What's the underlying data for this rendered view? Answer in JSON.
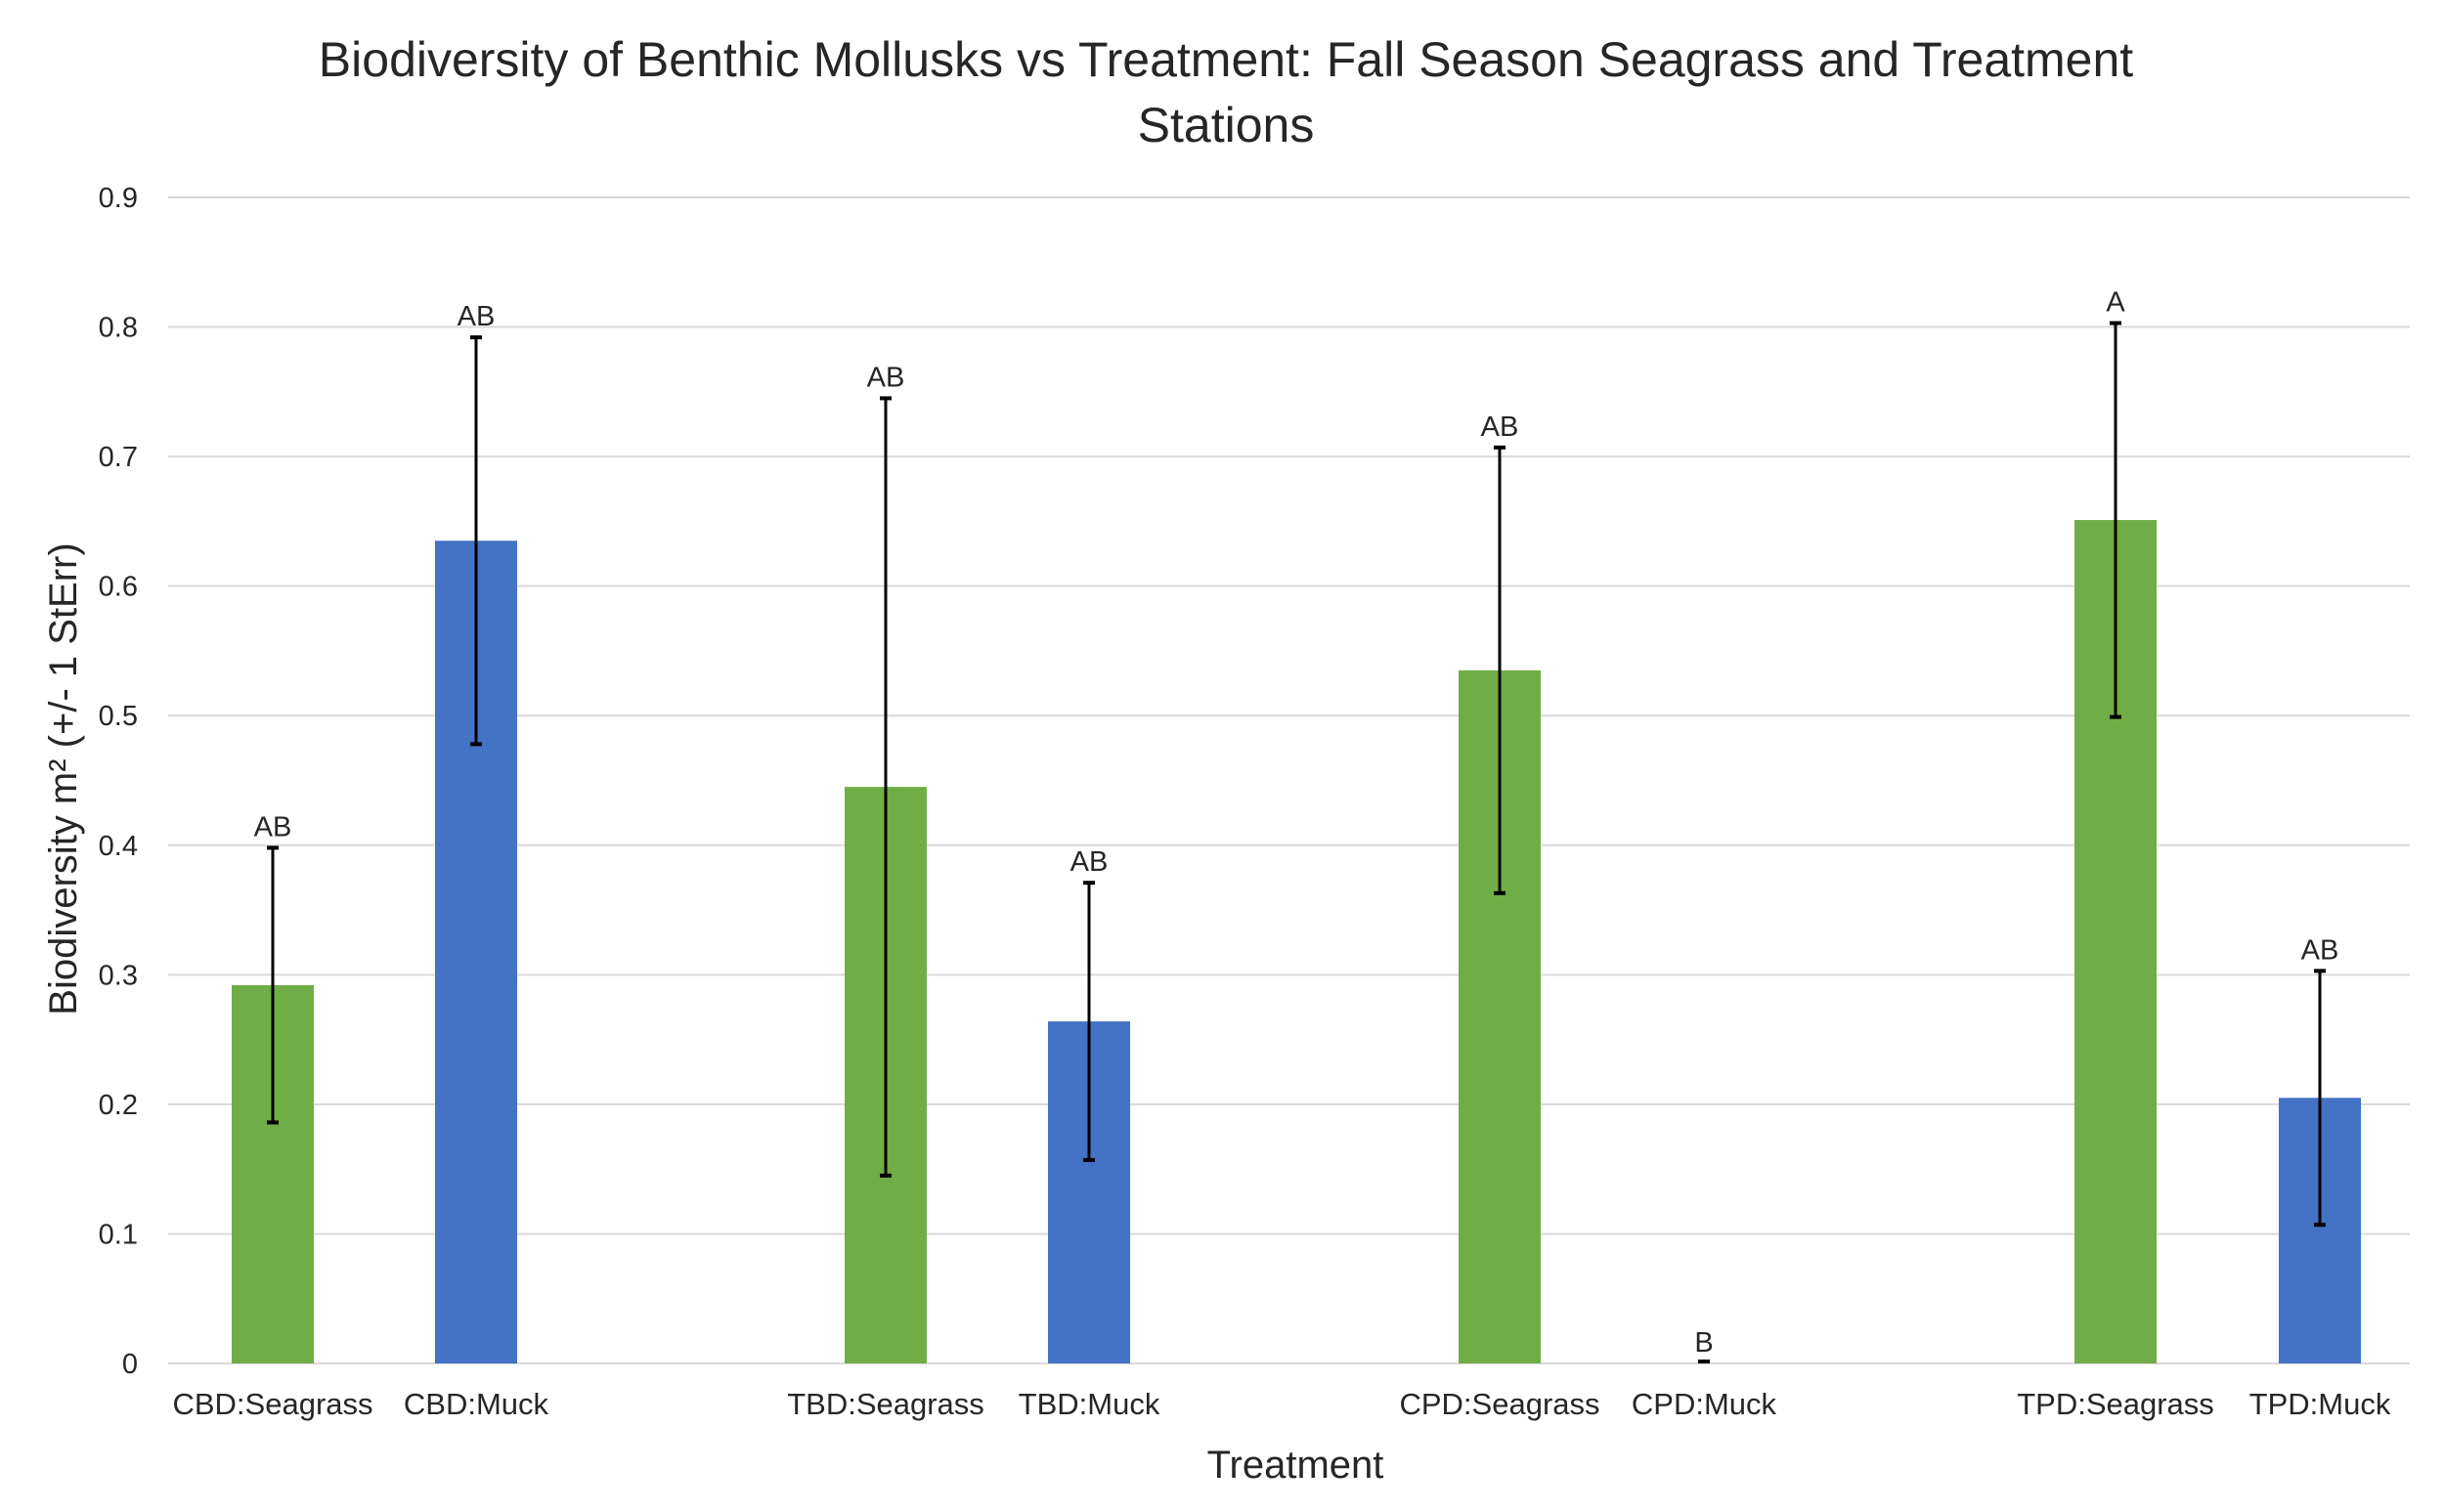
{
  "chart_data": {
    "type": "bar",
    "title_lines": [
      "Biodiversity of Benthic Mollusks vs Treatment: Fall Season Seagrass and Treatment",
      "Stations"
    ],
    "xlabel": "Treatment",
    "ylabel": "Biodiversity m² (+/- 1 StErr)",
    "ylim": [
      0,
      0.9
    ],
    "yticks": [
      "0",
      "0.1",
      "0.2",
      "0.3",
      "0.4",
      "0.5",
      "0.6",
      "0.7",
      "0.8",
      "0.9"
    ],
    "grid": true,
    "colors": {
      "Seagrass": "#70ad47",
      "Muck": "#4472c4",
      "error": "#000000",
      "grid": "#d9d9d9"
    },
    "bars": [
      {
        "category": "CBD:Seagrass",
        "habitat": "Seagrass",
        "value": 0.292,
        "error": 0.106,
        "letter": "AB"
      },
      {
        "category": "CBD:Muck",
        "habitat": "Muck",
        "value": 0.635,
        "error": 0.157,
        "letter": "AB"
      },
      {
        "category": "TBD:Seagrass",
        "habitat": "Seagrass",
        "value": 0.445,
        "error": 0.3,
        "letter": "AB"
      },
      {
        "category": "TBD:Muck",
        "habitat": "Muck",
        "value": 0.264,
        "error": 0.107,
        "letter": "AB"
      },
      {
        "category": "CPD:Seagrass",
        "habitat": "Seagrass",
        "value": 0.535,
        "error": 0.172,
        "letter": "AB"
      },
      {
        "category": "CPD:Muck",
        "habitat": "Muck",
        "value": 0.0,
        "error": 0.0,
        "letter": "B"
      },
      {
        "category": "TPD:Seagrass",
        "habitat": "Seagrass",
        "value": 0.651,
        "error": 0.152,
        "letter": "A"
      },
      {
        "category": "TPD:Muck",
        "habitat": "Muck",
        "value": 0.205,
        "error": 0.098,
        "letter": "AB"
      }
    ]
  }
}
